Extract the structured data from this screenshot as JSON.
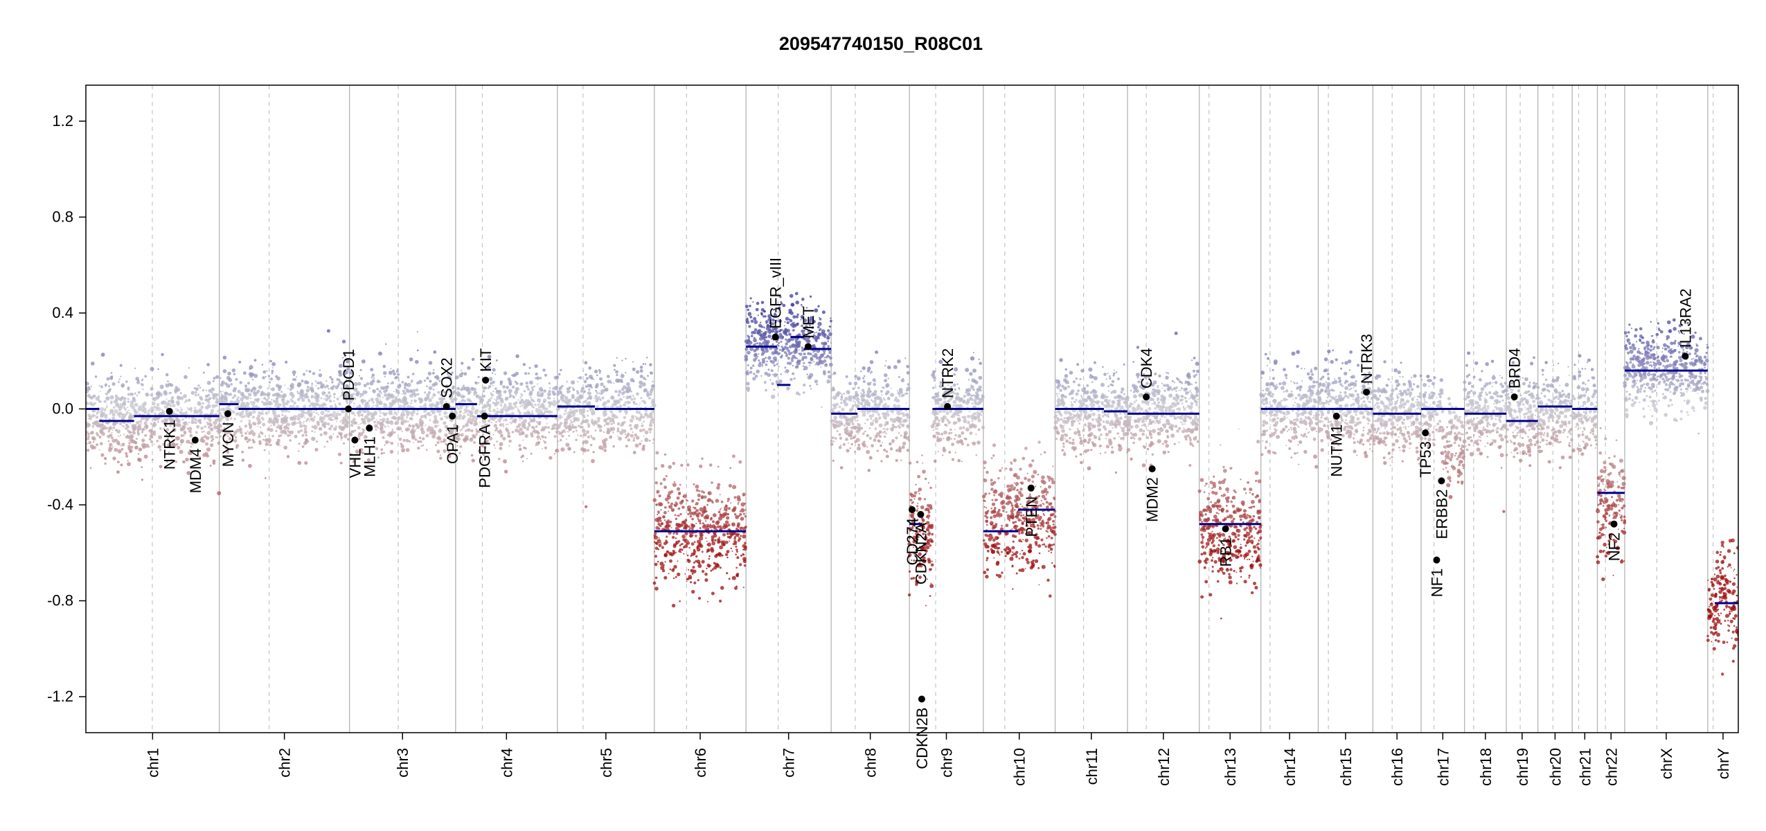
{
  "chart_data": {
    "type": "scatter",
    "title": "209547740150_R08C01",
    "xlabel": "",
    "ylabel": "",
    "ylim": [
      -1.35,
      1.35
    ],
    "yticks": [
      1.2,
      0.8,
      0.4,
      0.0,
      -0.4,
      -0.8,
      -1.2
    ],
    "ytick_labels": [
      "1.2",
      "0.8",
      "0.4",
      "0.0",
      "-0.4",
      "-0.8",
      "-1.2"
    ],
    "grid": false,
    "color_scale": {
      "high": "#3b3b9e",
      "mid": "#c8c8d0",
      "low": "#9e0d0d"
    },
    "segment_color": "#00008b",
    "chromosomes": [
      {
        "name": "chr1",
        "start": 0,
        "end": 249,
        "centromere": 124
      },
      {
        "name": "chr2",
        "start": 249,
        "end": 492,
        "centromere": 93
      },
      {
        "name": "chr3",
        "start": 492,
        "end": 690,
        "centromere": 91
      },
      {
        "name": "chr4",
        "start": 690,
        "end": 880,
        "centromere": 50
      },
      {
        "name": "chr5",
        "start": 880,
        "end": 1061,
        "centromere": 48
      },
      {
        "name": "chr6",
        "start": 1061,
        "end": 1232,
        "centromere": 60
      },
      {
        "name": "chr7",
        "start": 1232,
        "end": 1391,
        "centromere": 60
      },
      {
        "name": "chr8",
        "start": 1391,
        "end": 1537,
        "centromere": 45
      },
      {
        "name": "chr9",
        "start": 1537,
        "end": 1675,
        "centromere": 49
      },
      {
        "name": "chr10",
        "start": 1675,
        "end": 1809,
        "centromere": 40
      },
      {
        "name": "chr11",
        "start": 1809,
        "end": 1944,
        "centromere": 53
      },
      {
        "name": "chr12",
        "start": 1944,
        "end": 2078,
        "centromere": 35
      },
      {
        "name": "chr13",
        "start": 2078,
        "end": 2193,
        "centromere": 18
      },
      {
        "name": "chr14",
        "start": 2193,
        "end": 2300,
        "centromere": 17
      },
      {
        "name": "chr15",
        "start": 2300,
        "end": 2402,
        "centromere": 19
      },
      {
        "name": "chr16",
        "start": 2402,
        "end": 2492,
        "centromere": 36
      },
      {
        "name": "chr17",
        "start": 2492,
        "end": 2573,
        "centromere": 24
      },
      {
        "name": "chr18",
        "start": 2573,
        "end": 2651,
        "centromere": 17
      },
      {
        "name": "chr19",
        "start": 2651,
        "end": 2710,
        "centromere": 26
      },
      {
        "name": "chr20",
        "start": 2710,
        "end": 2774,
        "centromere": 28
      },
      {
        "name": "chr21",
        "start": 2774,
        "end": 2821,
        "centromere": 12
      },
      {
        "name": "chr22",
        "start": 2821,
        "end": 2872,
        "centromere": 15
      },
      {
        "name": "chrX",
        "start": 2872,
        "end": 3027,
        "centromere": 60
      },
      {
        "name": "chrY",
        "start": 3027,
        "end": 3084,
        "centromere": 10
      }
    ],
    "segments": [
      {
        "x0": 0,
        "x1": 25,
        "y": 0.0
      },
      {
        "x0": 25,
        "x1": 90,
        "y": -0.05
      },
      {
        "x0": 90,
        "x1": 249,
        "y": -0.03
      },
      {
        "x0": 249,
        "x1": 285,
        "y": 0.02
      },
      {
        "x0": 285,
        "x1": 492,
        "y": 0.0
      },
      {
        "x0": 492,
        "x1": 690,
        "y": 0.0
      },
      {
        "x0": 690,
        "x1": 730,
        "y": 0.02
      },
      {
        "x0": 730,
        "x1": 880,
        "y": -0.03
      },
      {
        "x0": 880,
        "x1": 950,
        "y": 0.01
      },
      {
        "x0": 950,
        "x1": 1061,
        "y": 0.0
      },
      {
        "x0": 1061,
        "x1": 1170,
        "y": -0.51
      },
      {
        "x0": 1170,
        "x1": 1232,
        "y": -0.51
      },
      {
        "x0": 1232,
        "x1": 1290,
        "y": 0.26
      },
      {
        "x0": 1290,
        "x1": 1315,
        "y": 0.1
      },
      {
        "x0": 1315,
        "x1": 1340,
        "y": 0.3
      },
      {
        "x0": 1340,
        "x1": 1391,
        "y": 0.25
      },
      {
        "x0": 1391,
        "x1": 1440,
        "y": -0.02
      },
      {
        "x0": 1440,
        "x1": 1537,
        "y": 0.0
      },
      {
        "x0": 1537,
        "x1": 1560,
        "y": -0.48
      },
      {
        "x0": 1580,
        "x1": 1675,
        "y": 0.0
      },
      {
        "x0": 1675,
        "x1": 1740,
        "y": -0.51
      },
      {
        "x0": 1740,
        "x1": 1809,
        "y": -0.42
      },
      {
        "x0": 1809,
        "x1": 1900,
        "y": 0.0
      },
      {
        "x0": 1900,
        "x1": 1944,
        "y": -0.01
      },
      {
        "x0": 1944,
        "x1": 2078,
        "y": -0.02
      },
      {
        "x0": 2078,
        "x1": 2193,
        "y": -0.48
      },
      {
        "x0": 2193,
        "x1": 2300,
        "y": 0.0
      },
      {
        "x0": 2300,
        "x1": 2402,
        "y": 0.0
      },
      {
        "x0": 2402,
        "x1": 2492,
        "y": -0.02
      },
      {
        "x0": 2492,
        "x1": 2573,
        "y": 0.0
      },
      {
        "x0": 2573,
        "x1": 2651,
        "y": -0.02
      },
      {
        "x0": 2651,
        "x1": 2710,
        "y": -0.05
      },
      {
        "x0": 2710,
        "x1": 2774,
        "y": 0.01
      },
      {
        "x0": 2774,
        "x1": 2821,
        "y": 0.0
      },
      {
        "x0": 2821,
        "x1": 2872,
        "y": -0.35
      },
      {
        "x0": 2872,
        "x1": 3027,
        "y": 0.16
      },
      {
        "x0": 3040,
        "x1": 3084,
        "y": -0.81
      }
    ],
    "region_means": [
      {
        "x0": 0,
        "x1": 249,
        "y": -0.04
      },
      {
        "x0": 249,
        "x1": 492,
        "y": 0.0
      },
      {
        "x0": 492,
        "x1": 690,
        "y": 0.0
      },
      {
        "x0": 690,
        "x1": 880,
        "y": -0.02
      },
      {
        "x0": 880,
        "x1": 1061,
        "y": 0.0
      },
      {
        "x0": 1061,
        "x1": 1232,
        "y": -0.51
      },
      {
        "x0": 1232,
        "x1": 1391,
        "y": 0.27
      },
      {
        "x0": 1391,
        "x1": 1537,
        "y": -0.02
      },
      {
        "x0": 1537,
        "x1": 1580,
        "y": -0.5
      },
      {
        "x0": 1580,
        "x1": 1675,
        "y": 0.0
      },
      {
        "x0": 1675,
        "x1": 1809,
        "y": -0.46
      },
      {
        "x0": 1809,
        "x1": 2078,
        "y": -0.01
      },
      {
        "x0": 2078,
        "x1": 2193,
        "y": -0.5
      },
      {
        "x0": 2193,
        "x1": 2402,
        "y": 0.0
      },
      {
        "x0": 2402,
        "x1": 2532,
        "y": -0.03
      },
      {
        "x0": 2532,
        "x1": 2573,
        "y": -0.15
      },
      {
        "x0": 2573,
        "x1": 2821,
        "y": -0.02
      },
      {
        "x0": 2821,
        "x1": 2872,
        "y": -0.4
      },
      {
        "x0": 2872,
        "x1": 3027,
        "y": 0.16
      },
      {
        "x0": 3027,
        "x1": 3084,
        "y": -0.8
      }
    ],
    "genes": [
      {
        "name": "NTRK1",
        "x": 156,
        "y": -0.01
      },
      {
        "name": "MDM4",
        "x": 204,
        "y": -0.13
      },
      {
        "name": "MYCN",
        "x": 265,
        "y": -0.02
      },
      {
        "name": "PDCD1",
        "x": 490,
        "y": 0.0
      },
      {
        "name": "VHL",
        "x": 502,
        "y": -0.13
      },
      {
        "name": "MLH1",
        "x": 529,
        "y": -0.08
      },
      {
        "name": "SOX2",
        "x": 673,
        "y": 0.01
      },
      {
        "name": "OPA1",
        "x": 684,
        "y": -0.03
      },
      {
        "name": "PDGFRA",
        "x": 744,
        "y": -0.03
      },
      {
        "name": "KIT",
        "x": 746,
        "y": 0.12
      },
      {
        "name": "EGFR_vIII",
        "x": 1287,
        "y": 0.3
      },
      {
        "name": "MET",
        "x": 1348,
        "y": 0.26
      },
      {
        "name": "CDKN2A",
        "x": 1558,
        "y": -0.44
      },
      {
        "name": "CD274",
        "x": 1542,
        "y": -0.42
      },
      {
        "name": "CDKN2B",
        "x": 1560,
        "y": -1.21
      },
      {
        "name": "NTRK2",
        "x": 1608,
        "y": 0.01
      },
      {
        "name": "PTEN",
        "x": 1764,
        "y": -0.33
      },
      {
        "name": "CDK4",
        "x": 1979,
        "y": 0.05
      },
      {
        "name": "MDM2",
        "x": 1990,
        "y": -0.25
      },
      {
        "name": "RB1",
        "x": 2127,
        "y": -0.5
      },
      {
        "name": "NUTM1",
        "x": 2334,
        "y": -0.03
      },
      {
        "name": "NTRK3",
        "x": 2390,
        "y": 0.07
      },
      {
        "name": "TP53",
        "x": 2500,
        "y": -0.1
      },
      {
        "name": "NF1",
        "x": 2521,
        "y": -0.63
      },
      {
        "name": "ERBB2",
        "x": 2530,
        "y": -0.3
      },
      {
        "name": "BRD4",
        "x": 2666,
        "y": 0.05
      },
      {
        "name": "NF2",
        "x": 2852,
        "y": -0.48
      },
      {
        "name": "IL13RA2",
        "x": 2985,
        "y": 0.22
      }
    ]
  }
}
